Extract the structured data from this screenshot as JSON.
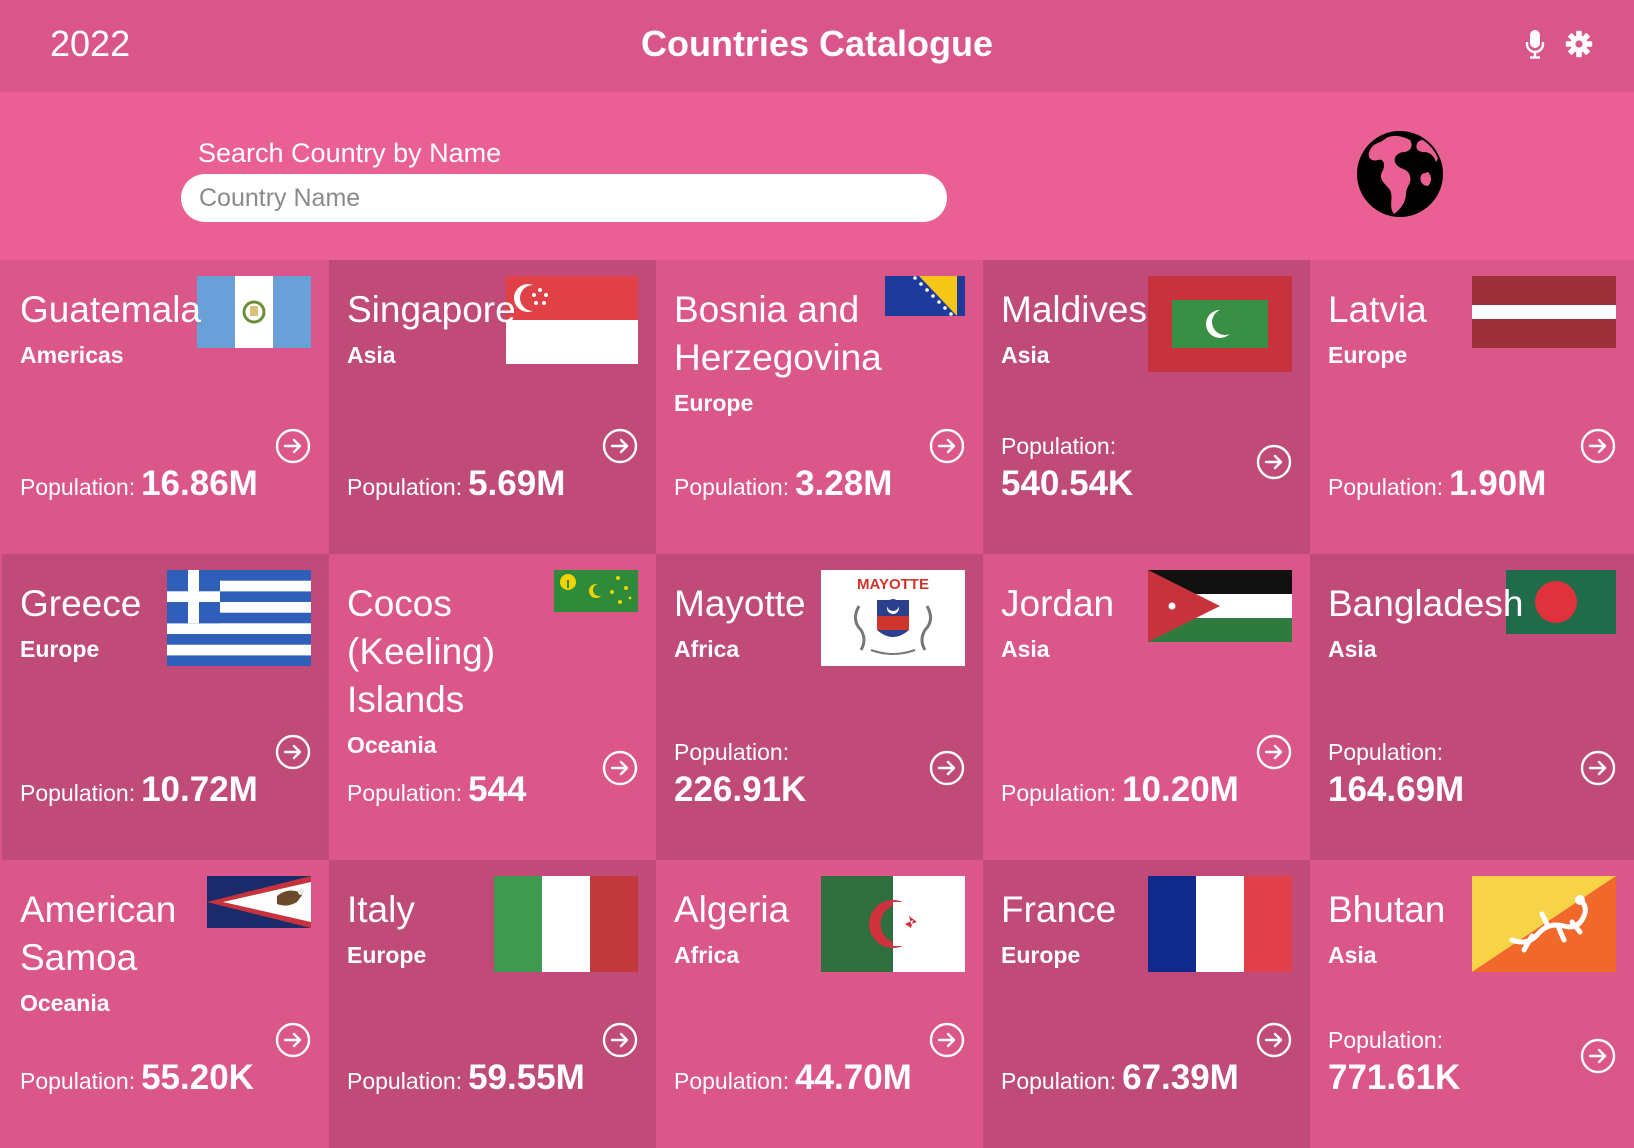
{
  "header": {
    "year": "2022",
    "title": "Countries Catalogue",
    "icons": [
      "microphone-icon",
      "gear-icon"
    ]
  },
  "search": {
    "label": "Search Country by Name",
    "placeholder": "Country Name",
    "value": ""
  },
  "colors": {
    "header_bg": "#d9558a",
    "search_bg": "#ea6094",
    "card_light": "#db5689",
    "card_dark": "#c04b78"
  },
  "countries": [
    {
      "name": "Guatemala",
      "region": "Americas",
      "population_label": "Population:",
      "population": "16.86M",
      "flag": "flag-guatemala"
    },
    {
      "name": "Singapore",
      "region": "Asia",
      "population_label": "Population:",
      "population": "5.69M",
      "flag": "flag-singapore"
    },
    {
      "name": "Bosnia and Herzegovina",
      "region": "Europe",
      "population_label": "Population:",
      "population": "3.28M",
      "flag": "flag-bosnia"
    },
    {
      "name": "Maldives",
      "region": "Asia",
      "population_label": "Population:",
      "population": "540.54K",
      "flag": "flag-maldives"
    },
    {
      "name": "Latvia",
      "region": "Europe",
      "population_label": "Population:",
      "population": "1.90M",
      "flag": "flag-latvia"
    },
    {
      "name": "Greece",
      "region": "Europe",
      "population_label": "Population:",
      "population": "10.72M",
      "flag": "flag-greece"
    },
    {
      "name": "Cocos (Keeling) Islands",
      "region": "Oceania",
      "population_label": "Population:",
      "population": "544",
      "flag": "flag-cocos"
    },
    {
      "name": "Mayotte",
      "region": "Africa",
      "population_label": "Population:",
      "population": "226.91K",
      "flag": "flag-mayotte",
      "flag_text": "MAYOTTE"
    },
    {
      "name": "Jordan",
      "region": "Asia",
      "population_label": "Population:",
      "population": "10.20M",
      "flag": "flag-jordan"
    },
    {
      "name": "Bangladesh",
      "region": "Asia",
      "population_label": "Population:",
      "population": "164.69M",
      "flag": "flag-bangladesh"
    },
    {
      "name": "American Samoa",
      "region": "Oceania",
      "population_label": "Population:",
      "population": "55.20K",
      "flag": "flag-american-samoa"
    },
    {
      "name": "Italy",
      "region": "Europe",
      "population_label": "Population:",
      "population": "59.55M",
      "flag": "flag-italy"
    },
    {
      "name": "Algeria",
      "region": "Africa",
      "population_label": "Population:",
      "population": "44.70M",
      "flag": "flag-algeria"
    },
    {
      "name": "France",
      "region": "Europe",
      "population_label": "Population:",
      "population": "67.39M",
      "flag": "flag-france"
    },
    {
      "name": "Bhutan",
      "region": "Asia",
      "population_label": "Population:",
      "population": "771.61K",
      "flag": "flag-bhutan"
    }
  ]
}
